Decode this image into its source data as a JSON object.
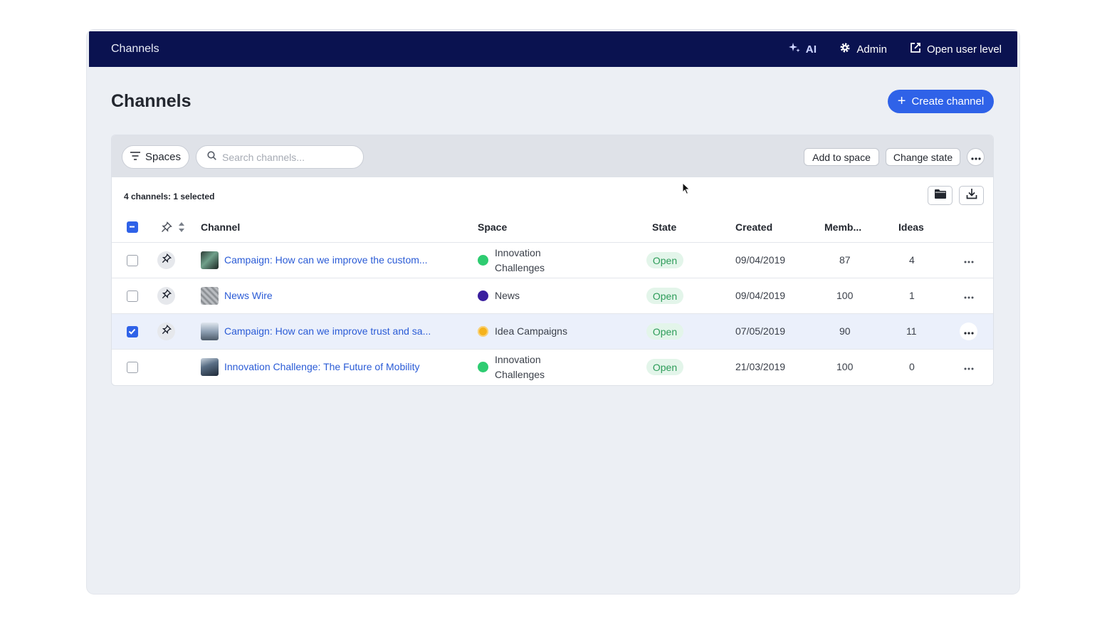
{
  "topbar": {
    "title": "Channels",
    "ai_label": "AI",
    "admin_label": "Admin",
    "open_user_level_label": "Open user level"
  },
  "header": {
    "page_title": "Channels",
    "create_button_label": "Create channel"
  },
  "toolbar": {
    "spaces_label": "Spaces",
    "search_placeholder": "Search channels...",
    "add_to_space_label": "Add to space",
    "change_state_label": "Change state"
  },
  "summary": "4 channels: 1 selected",
  "columns": {
    "channel": "Channel",
    "space": "Space",
    "state": "State",
    "created": "Created",
    "members": "Memb...",
    "ideas": "Ideas"
  },
  "rows": [
    {
      "channel": "Campaign: How can we improve the custom...",
      "space_line1": "Innovation",
      "space_line2": "Challenges",
      "space_color": "#2ecc71",
      "state": "Open",
      "created": "09/04/2019",
      "members": "87",
      "ideas": "4",
      "checked": false,
      "pinned": true
    },
    {
      "channel": "News Wire",
      "space_line1": "News",
      "space_line2": "",
      "space_color": "#3a1f9e",
      "state": "Open",
      "created": "09/04/2019",
      "members": "100",
      "ideas": "1",
      "checked": false,
      "pinned": true
    },
    {
      "channel": "Campaign: How can we improve trust and sa...",
      "space_line1": "Idea Campaigns",
      "space_line2": "",
      "space_color": "#f5b21b",
      "state": "Open",
      "created": "07/05/2019",
      "members": "90",
      "ideas": "11",
      "checked": true,
      "pinned": true
    },
    {
      "channel": "Innovation Challenge: The Future of Mobility",
      "space_line1": "Innovation",
      "space_line2": "Challenges",
      "space_color": "#2ecc71",
      "state": "Open",
      "created": "21/03/2019",
      "members": "100",
      "ideas": "0",
      "checked": false,
      "pinned": false
    }
  ],
  "colors": {
    "topbar": "#0a1250",
    "accent": "#2f62e8",
    "link": "#2a5bd6",
    "open_badge_bg": "#e3f5ea",
    "open_badge_text": "#2d9c59"
  }
}
